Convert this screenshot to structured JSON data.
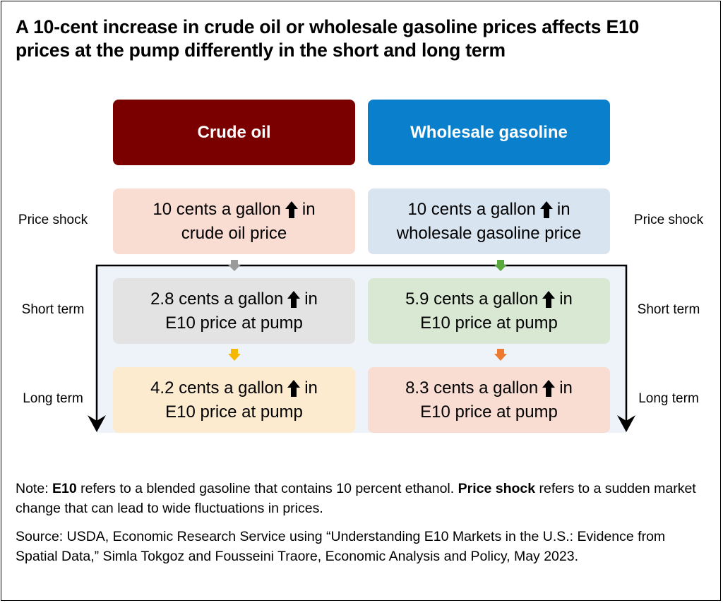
{
  "title": {
    "line1": "A 10-cent increase in crude oil or wholesale gasoline prices affects E10",
    "line2": "prices at the pump differently in the short and long term"
  },
  "columns": [
    {
      "label": "Crude oil",
      "color": "#7a0000",
      "price_shock": {
        "line1_pre": "10 cents a gallon",
        "line1_post": "in",
        "line2": "crude oil price",
        "color": "#f9dcd2"
      },
      "short_term": {
        "line1_pre": "2.8 cents a gallon",
        "line1_post": "in",
        "line2": "E10 price at pump",
        "color": "#e3e3e3"
      },
      "long_term": {
        "line1_pre": "4.2 cents a gallon",
        "line1_post": "in",
        "line2": "E10 price at pump",
        "color": "#fdebd0"
      }
    },
    {
      "label": "Wholesale gasoline",
      "color": "#0a7fcc",
      "price_shock": {
        "line1_pre": "10 cents a gallon",
        "line1_post": "in",
        "line2": "wholesale gasoline price",
        "color": "#d9e4f1"
      },
      "short_term": {
        "line1_pre": "5.9 cents a gallon",
        "line1_post": "in",
        "line2": "E10 price at pump",
        "color": "#d9e8d3"
      },
      "long_term": {
        "line1_pre": "8.3 cents a gallon",
        "line1_post": "in",
        "line2": "E10 price at pump",
        "color": "#f9dcd2"
      }
    }
  ],
  "row_labels": {
    "price_shock": "Price shock",
    "short_term": "Short term",
    "long_term": "Long term"
  },
  "arrow_colors": {
    "crude_shock_to_short": "#9a9a9a",
    "crude_short_to_long": "#f5b800",
    "whole_shock_to_short": "#5aa83e",
    "whole_short_to_long": "#ee7a30"
  },
  "icons": {
    "up_arrow": "up-arrow-icon"
  },
  "note": {
    "prefix": "Note: ",
    "term1": "E10",
    "text1": " refers to a blended gasoline that contains 10 percent ethanol. ",
    "term2": "Price shock",
    "text2": " refers to a sudden market change that can lead to wide fluctuations in prices."
  },
  "source": "Source: USDA, Economic Research Service using “Understanding E10 Markets in the U.S.: Evidence from Spatial Data,” Simla Tokgoz and Fousseini Traore, Economic Analysis and Policy, May 2023."
}
